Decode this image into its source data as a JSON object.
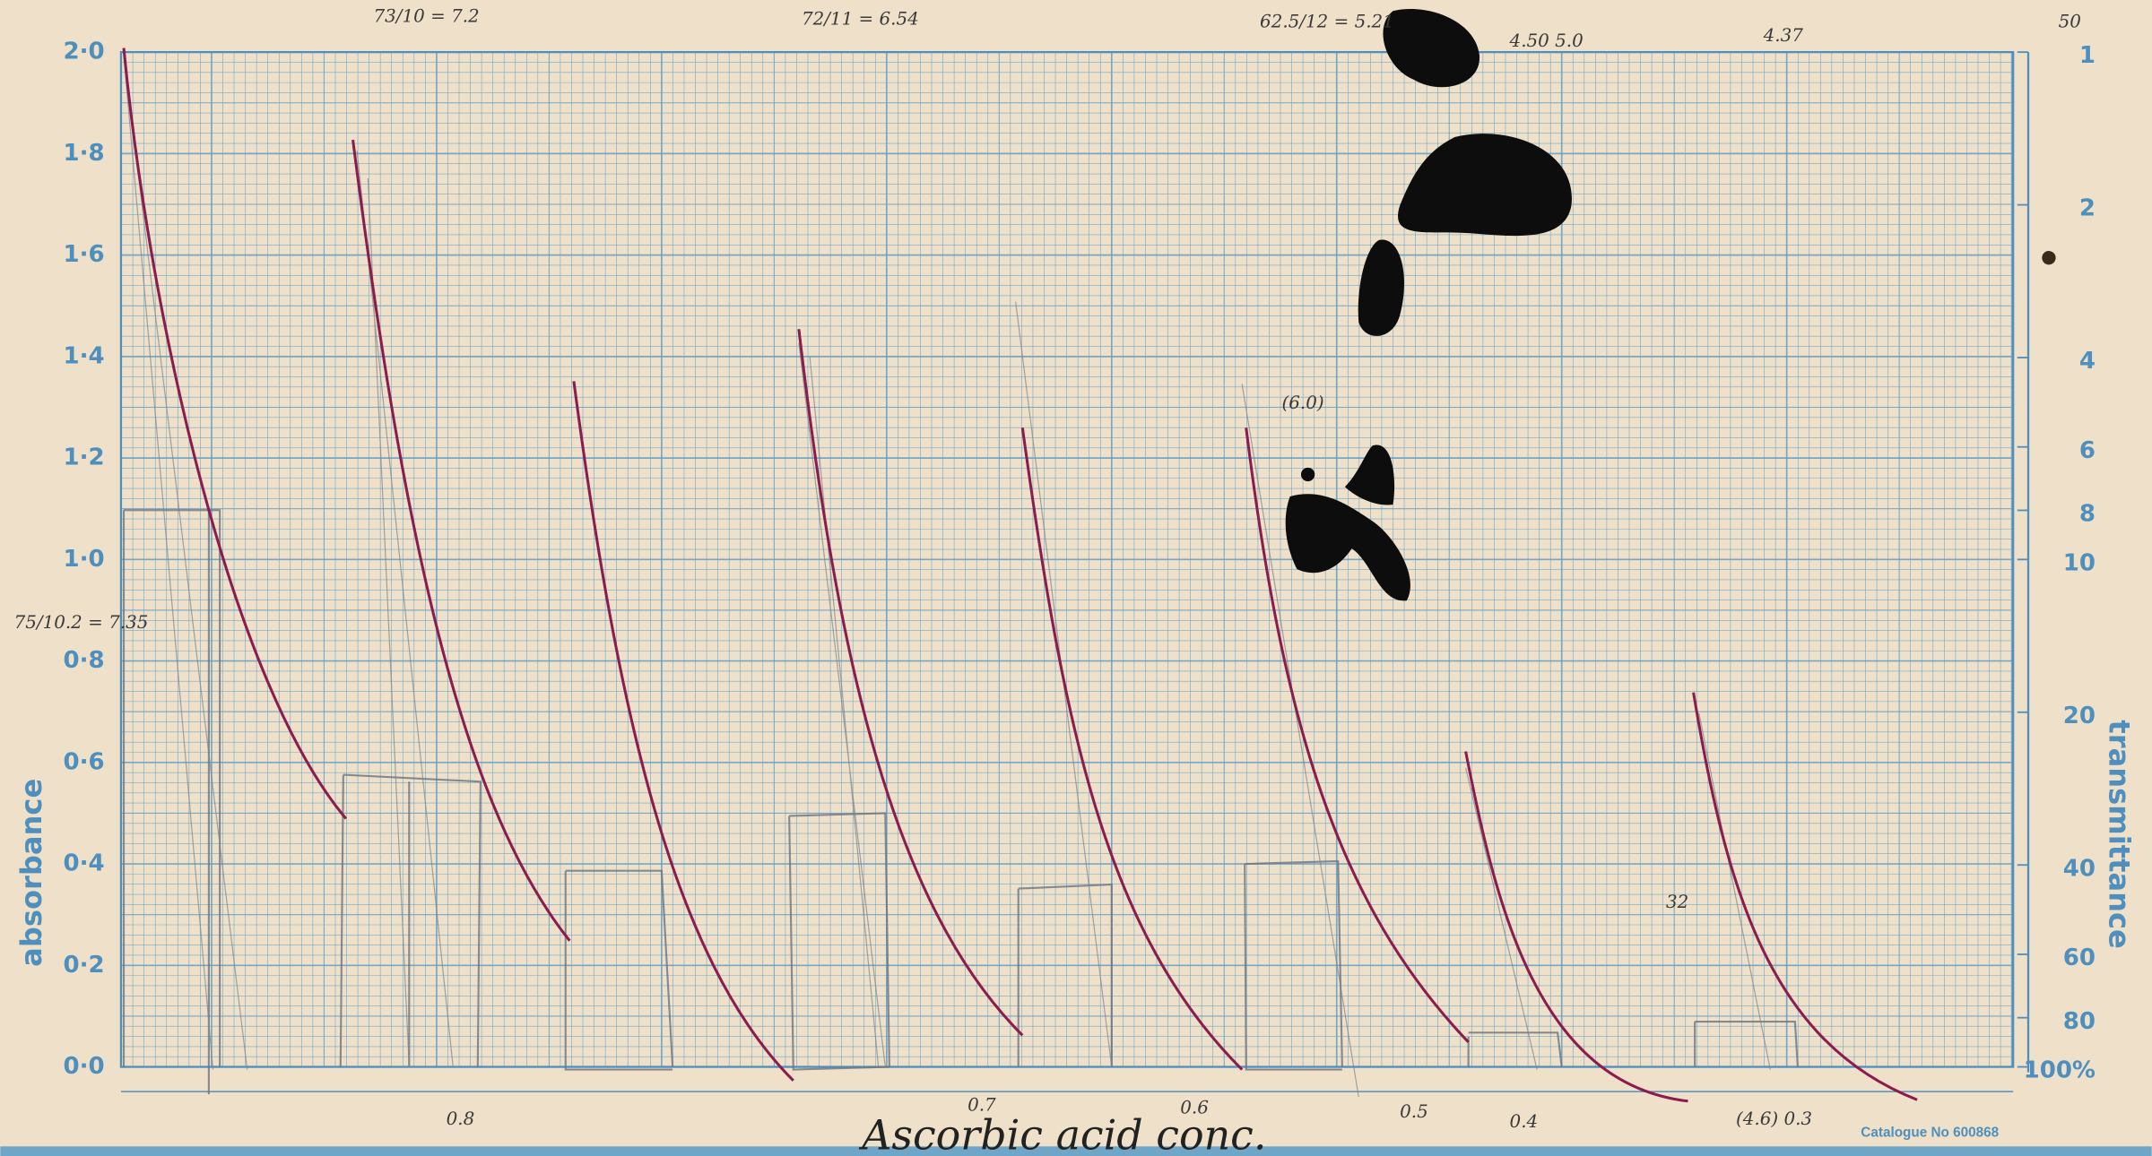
{
  "axes": {
    "left": {
      "label": "absorbance",
      "ticks": [
        "2·0",
        "1·8",
        "1·6",
        "1·4",
        "1·2",
        "1·0",
        "0·8",
        "0·6",
        "0·4",
        "0·2",
        "0·0"
      ]
    },
    "right": {
      "label": "transmittance",
      "ticks": [
        "1",
        "2",
        "4",
        "6",
        "8",
        "10",
        "20",
        "40",
        "60",
        "80",
        "100%"
      ]
    }
  },
  "catalogue": "Catalogue No 600868",
  "notes": {
    "title": "Ascorbic acid conc.",
    "bottom": [
      "0.8",
      "0.7",
      "0.6",
      "0.5",
      "0.4",
      "(4.6) 0.3"
    ],
    "top": [
      "73/10 = 7.2",
      "72/11 = 6.54",
      "62.5/12 = 5.21",
      "4.50 5.0",
      "4.37",
      "50"
    ],
    "side": [
      "75/10.2 = 7.35",
      "(6.0)",
      "32"
    ]
  }
}
